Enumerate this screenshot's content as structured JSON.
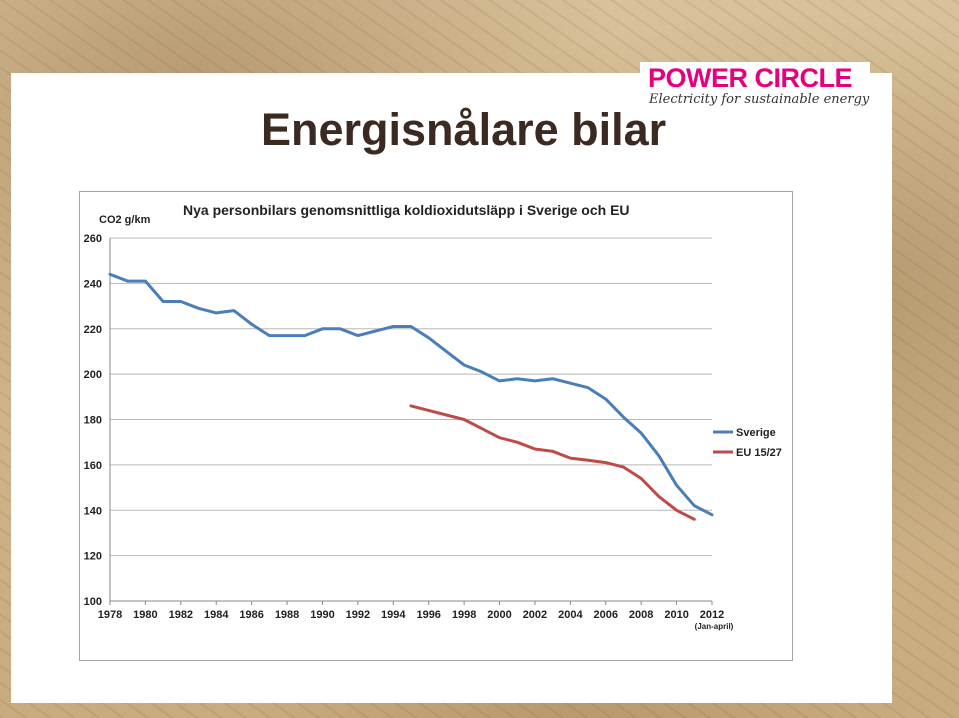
{
  "slide": {
    "title": "Energisnålare bilar",
    "logo": {
      "name": "POWER CIRCLE",
      "tagline": "Electricity for sustainable energy",
      "brand_color": "#e5007d"
    }
  },
  "chart_data": {
    "type": "line",
    "title": "Nya personbilars genomsnittliga koldioxidutsläpp i Sverige och EU",
    "ylabel": "CO2 g/km",
    "xlabel": "",
    "x_note": "(Jan-april)",
    "ylim": [
      100,
      260
    ],
    "yticks": [
      "100",
      "120",
      "140",
      "160",
      "180",
      "200",
      "220",
      "240",
      "260"
    ],
    "xlim": [
      1978,
      2012
    ],
    "xticks": [
      "1978",
      "1980",
      "1982",
      "1984",
      "1986",
      "1988",
      "1990",
      "1992",
      "1994",
      "1996",
      "1998",
      "2000",
      "2002",
      "2004",
      "2006",
      "2008",
      "2010",
      "2012"
    ],
    "grid": true,
    "legend_position": "right",
    "series": [
      {
        "name": "Sverige",
        "color": "#4a7ebb",
        "points": [
          [
            1978,
            244
          ],
          [
            1979,
            241
          ],
          [
            1980,
            241
          ],
          [
            1981,
            232
          ],
          [
            1982,
            232
          ],
          [
            1983,
            229
          ],
          [
            1984,
            227
          ],
          [
            1985,
            228
          ],
          [
            1986,
            222
          ],
          [
            1987,
            217
          ],
          [
            1988,
            217
          ],
          [
            1989,
            217
          ],
          [
            1990,
            220
          ],
          [
            1991,
            220
          ],
          [
            1992,
            217
          ],
          [
            1993,
            219
          ],
          [
            1994,
            221
          ],
          [
            1995,
            221
          ],
          [
            1996,
            216
          ],
          [
            1997,
            210
          ],
          [
            1998,
            204
          ],
          [
            1999,
            201
          ],
          [
            2000,
            197
          ],
          [
            2001,
            198
          ],
          [
            2002,
            197
          ],
          [
            2003,
            198
          ],
          [
            2004,
            196
          ],
          [
            2005,
            194
          ],
          [
            2006,
            189
          ],
          [
            2007,
            181
          ],
          [
            2008,
            174
          ],
          [
            2009,
            164
          ],
          [
            2010,
            151
          ],
          [
            2011,
            142
          ],
          [
            2012,
            138
          ]
        ]
      },
      {
        "name": "EU 15/27",
        "color": "#be4b48",
        "points": [
          [
            1995,
            186
          ],
          [
            1996,
            184
          ],
          [
            1997,
            182
          ],
          [
            1998,
            180
          ],
          [
            1999,
            176
          ],
          [
            2000,
            172
          ],
          [
            2001,
            170
          ],
          [
            2002,
            167
          ],
          [
            2003,
            166
          ],
          [
            2004,
            163
          ],
          [
            2005,
            162
          ],
          [
            2006,
            161
          ],
          [
            2007,
            159
          ],
          [
            2008,
            154
          ],
          [
            2009,
            146
          ],
          [
            2010,
            140
          ],
          [
            2011,
            136
          ]
        ]
      }
    ]
  }
}
